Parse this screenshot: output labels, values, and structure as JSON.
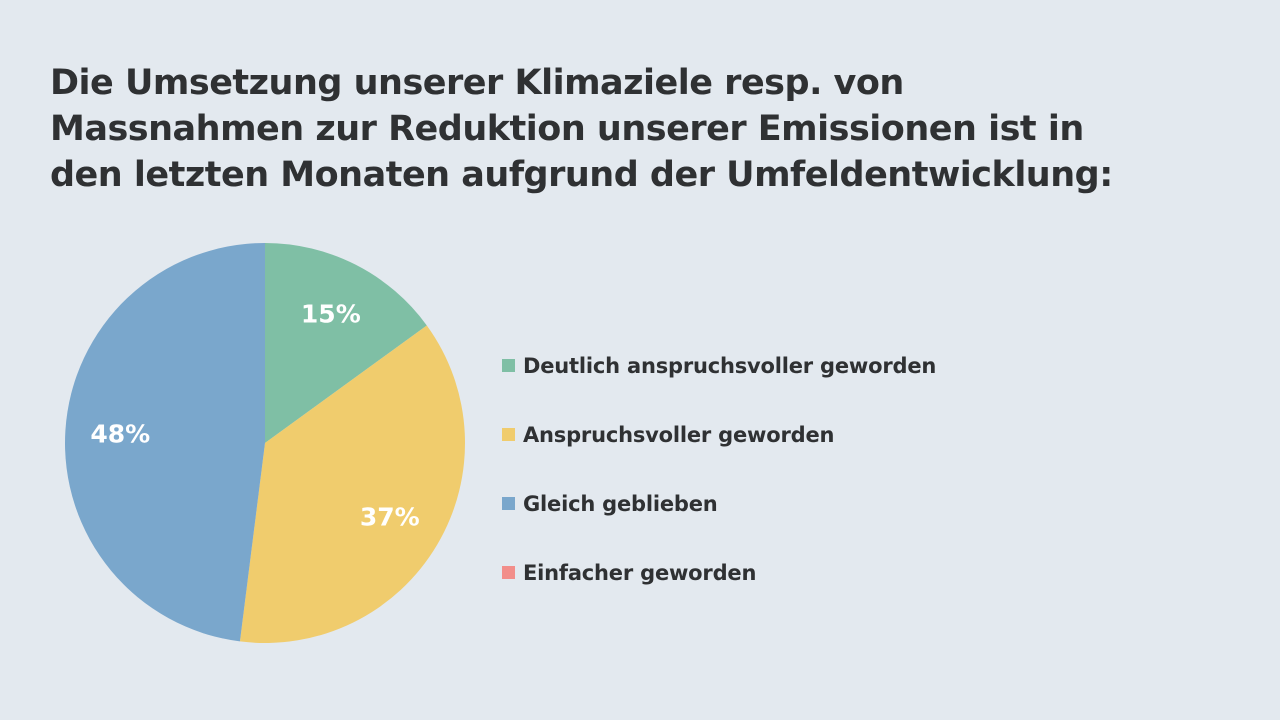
{
  "slide": {
    "title_lines": [
      "Die Umsetzung unserer Klimaziele resp. von",
      "Massnahmen zur Reduktion unserer Emissionen ist in",
      "den letzten Monaten aufgrund der Umfeldentwicklung:"
    ],
    "background": "#e3e9ef"
  },
  "chart_data": {
    "type": "pie",
    "start": "12 o'clock",
    "direction": "clockwise",
    "legend_position": "right",
    "slices": [
      {
        "label": "Deutlich anspruchsvoller geworden",
        "value": 15,
        "display": "15%",
        "color": "#7fbfa5"
      },
      {
        "label": "Anspruchsvoller geworden",
        "value": 37,
        "display": "37%",
        "color": "#f0cc6d"
      },
      {
        "label": "Gleich geblieben",
        "value": 48,
        "display": "48%",
        "color": "#7aa7cc"
      },
      {
        "label": "Einfacher geworden",
        "value": 0,
        "display": "",
        "color": "#f28e8a"
      }
    ]
  }
}
